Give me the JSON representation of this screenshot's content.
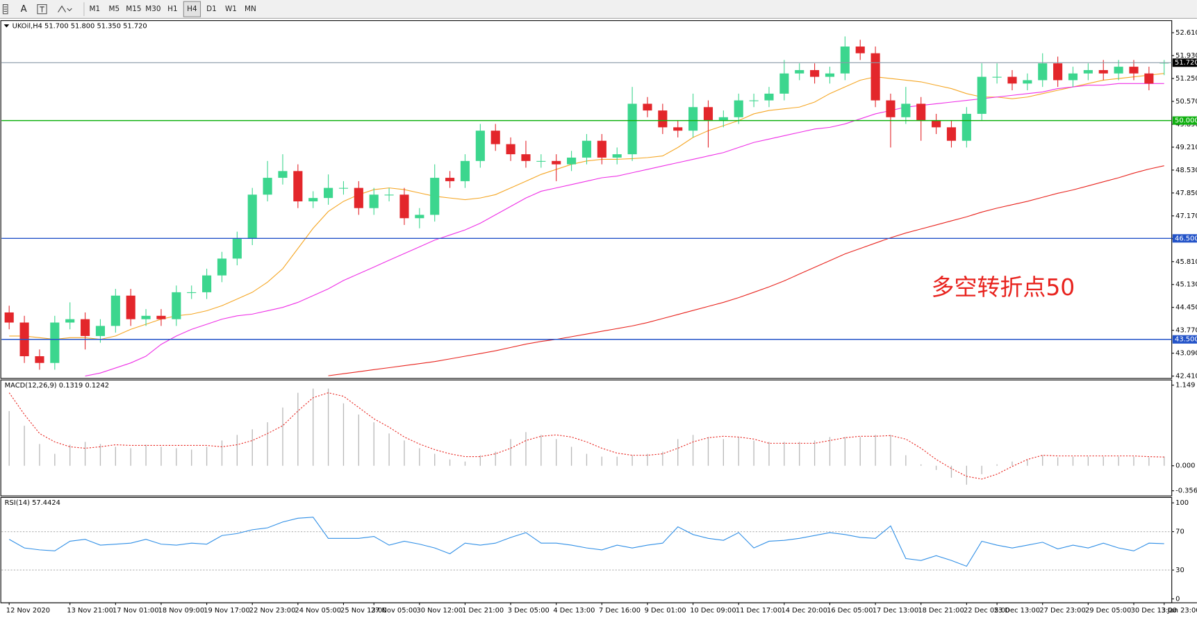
{
  "toolbar": {
    "text_tool": "A",
    "buttons": [
      "M1",
      "M5",
      "M15",
      "M30",
      "H1",
      "H4",
      "D1",
      "W1",
      "MN"
    ],
    "active": "H4"
  },
  "chart_data": [
    {
      "type": "candlestick",
      "title": "UKOil,H4  51.700 51.800 51.350 51.720",
      "categories": [
        "12 Nov 2020",
        null,
        null,
        null,
        "13 Nov 21:00",
        null,
        null,
        "17 Nov 01:00",
        null,
        null,
        "18 Nov 09:00",
        null,
        null,
        "19 Nov 17:00",
        null,
        null,
        "22 Nov 23:00",
        null,
        null,
        "24 Nov 05:00",
        null,
        null,
        "25 Nov 13:00",
        null,
        "27 Nov 05:00",
        null,
        null,
        "30 Nov 12:00",
        null,
        null,
        "1 Dec 21:00",
        null,
        null,
        "3 Dec 05:00",
        null,
        null,
        "4 Dec 13:00",
        null,
        null,
        "7 Dec 16:00",
        null,
        null,
        "9 Dec 01:00",
        null,
        null,
        "10 Dec 09:00",
        null,
        null,
        "11 Dec 17:00",
        null,
        null,
        "14 Dec 20:00",
        null,
        null,
        "16 Dec 05:00",
        null,
        null,
        "17 Dec 13:00",
        null,
        null,
        "18 Dec 21:00",
        null,
        null,
        "22 Dec 05:00",
        null,
        "23 Dec 13:00",
        null,
        null,
        "27 Dec 23:00",
        null,
        null,
        "29 Dec 05:00",
        null,
        null,
        "30 Dec 13:00",
        null,
        "3 Jan 23:00"
      ],
      "open": [
        44.3,
        44.0,
        43.0,
        42.8,
        44.0,
        44.1,
        43.6,
        43.9,
        44.8,
        44.1,
        44.2,
        44.1,
        44.9,
        44.9,
        45.4,
        45.9,
        46.5,
        47.8,
        48.3,
        48.5,
        47.6,
        47.7,
        48.0,
        48.0,
        47.4,
        47.8,
        47.8,
        47.1,
        47.2,
        48.3,
        48.2,
        48.8,
        49.7,
        49.3,
        49.0,
        48.8,
        48.8,
        48.7,
        48.9,
        49.4,
        48.9,
        49.0,
        50.5,
        50.3,
        49.8,
        49.7,
        50.4,
        50.0,
        50.1,
        50.6,
        50.6,
        50.8,
        51.4,
        51.5,
        51.3,
        51.4,
        52.2,
        52.0,
        50.6,
        50.1,
        50.5,
        50.0,
        49.8,
        49.4,
        50.2,
        51.3,
        51.3,
        51.1,
        51.2,
        51.7,
        51.2,
        51.4,
        51.5,
        51.4,
        51.6,
        51.4,
        51.7
      ],
      "high": [
        44.5,
        44.2,
        43.2,
        44.2,
        44.6,
        44.3,
        44.1,
        45.0,
        45.0,
        44.4,
        44.4,
        45.1,
        45.1,
        45.6,
        46.1,
        46.7,
        48.0,
        48.8,
        49.0,
        48.7,
        47.9,
        48.4,
        48.2,
        48.2,
        48.0,
        48.0,
        48.0,
        47.4,
        48.7,
        48.5,
        49.0,
        49.9,
        49.9,
        49.5,
        49.4,
        49.0,
        49.0,
        49.1,
        49.6,
        49.6,
        49.2,
        51.0,
        50.7,
        50.5,
        50.0,
        50.8,
        50.6,
        50.3,
        50.8,
        50.8,
        51.0,
        51.8,
        51.7,
        51.7,
        51.6,
        52.5,
        52.4,
        52.2,
        50.8,
        51.0,
        50.7,
        50.2,
        50.0,
        50.4,
        51.7,
        51.7,
        51.5,
        51.4,
        52.0,
        51.9,
        51.6,
        51.7,
        51.8,
        51.8,
        51.8,
        51.6,
        51.8
      ],
      "low": [
        43.8,
        42.8,
        42.6,
        42.6,
        43.8,
        43.2,
        43.4,
        43.7,
        43.9,
        43.9,
        43.9,
        43.9,
        44.7,
        44.7,
        45.2,
        45.7,
        46.3,
        47.6,
        48.1,
        47.4,
        47.4,
        47.5,
        47.8,
        47.2,
        47.2,
        47.6,
        46.9,
        46.8,
        47.0,
        48.0,
        48.0,
        48.6,
        49.1,
        48.8,
        48.6,
        48.6,
        48.2,
        48.5,
        48.7,
        48.7,
        48.7,
        48.8,
        50.1,
        49.6,
        49.5,
        49.5,
        49.2,
        49.8,
        49.9,
        50.4,
        50.4,
        50.6,
        51.2,
        51.1,
        51.1,
        51.2,
        51.8,
        50.4,
        49.2,
        49.9,
        49.4,
        49.6,
        49.2,
        49.2,
        50.0,
        51.1,
        50.9,
        50.9,
        51.0,
        51.0,
        51.0,
        51.2,
        51.2,
        51.2,
        51.2,
        50.9,
        51.35
      ],
      "close": [
        44.0,
        43.0,
        42.8,
        44.0,
        44.1,
        43.6,
        43.9,
        44.8,
        44.1,
        44.2,
        44.1,
        44.9,
        44.9,
        45.4,
        45.9,
        46.5,
        47.8,
        48.3,
        48.5,
        47.6,
        47.7,
        48.0,
        48.0,
        47.4,
        47.8,
        47.8,
        47.1,
        47.2,
        48.3,
        48.2,
        48.8,
        49.7,
        49.3,
        49.0,
        48.8,
        48.8,
        48.7,
        48.9,
        49.4,
        48.9,
        49.0,
        50.5,
        50.3,
        49.8,
        49.7,
        50.4,
        50.0,
        50.1,
        50.6,
        50.6,
        50.8,
        51.4,
        51.5,
        51.3,
        51.4,
        52.2,
        52.0,
        50.6,
        50.1,
        50.5,
        50.0,
        49.8,
        49.4,
        50.2,
        51.3,
        51.3,
        51.1,
        51.2,
        51.7,
        51.2,
        51.4,
        51.5,
        51.4,
        51.6,
        51.4,
        51.1,
        51.72
      ],
      "up_color": "#3cd68e",
      "down_color": "#e3262b",
      "series": [
        {
          "color": "#f5a623",
          "values": [
            43.6,
            43.6,
            43.55,
            43.5,
            43.55,
            43.55,
            43.5,
            43.6,
            43.8,
            43.95,
            44.1,
            44.2,
            44.25,
            44.35,
            44.5,
            44.7,
            44.9,
            45.2,
            45.6,
            46.2,
            46.8,
            47.3,
            47.6,
            47.8,
            47.95,
            48.0,
            47.95,
            47.85,
            47.75,
            47.7,
            47.65,
            47.7,
            47.8,
            48.0,
            48.2,
            48.4,
            48.55,
            48.7,
            48.8,
            48.85,
            48.85,
            48.87,
            48.9,
            48.95,
            49.2,
            49.5,
            49.7,
            49.85,
            50.0,
            50.2,
            50.3,
            50.35,
            50.4,
            50.55,
            50.8,
            51.0,
            51.2,
            51.3,
            51.25,
            51.2,
            51.15,
            51.05,
            50.95,
            50.8,
            50.7,
            50.7,
            50.65,
            50.7,
            50.8,
            50.9,
            51.0,
            51.1,
            51.2,
            51.25,
            51.3,
            51.35,
            51.4
          ]
        },
        {
          "color": "#ee2ee6",
          "values": [
            null,
            null,
            null,
            null,
            null,
            42.41,
            42.5,
            42.65,
            42.8,
            43.0,
            43.35,
            43.6,
            43.8,
            43.95,
            44.1,
            44.2,
            44.25,
            44.35,
            44.45,
            44.6,
            44.8,
            45.0,
            45.25,
            45.45,
            45.65,
            45.85,
            46.05,
            46.25,
            46.45,
            46.6,
            46.75,
            46.95,
            47.2,
            47.45,
            47.7,
            47.9,
            48.0,
            48.1,
            48.2,
            48.3,
            48.35,
            48.45,
            48.55,
            48.65,
            48.75,
            48.85,
            48.95,
            49.05,
            49.2,
            49.35,
            49.45,
            49.55,
            49.65,
            49.75,
            49.8,
            49.9,
            50.05,
            50.2,
            50.3,
            50.4,
            50.45,
            50.5,
            50.55,
            50.6,
            50.65,
            50.7,
            50.75,
            50.8,
            50.85,
            50.95,
            51.0,
            51.05,
            51.05,
            51.1,
            51.1,
            51.1,
            51.1
          ]
        },
        {
          "color": "#e8221c",
          "values": [
            null,
            null,
            null,
            null,
            null,
            null,
            null,
            null,
            null,
            null,
            null,
            null,
            null,
            null,
            null,
            null,
            null,
            null,
            null,
            null,
            null,
            42.42,
            42.48,
            42.54,
            42.6,
            42.66,
            42.72,
            42.78,
            42.84,
            42.92,
            43.0,
            43.08,
            43.16,
            43.26,
            43.36,
            43.44,
            43.5,
            43.58,
            43.66,
            43.74,
            43.82,
            43.9,
            44.0,
            44.12,
            44.24,
            44.36,
            44.48,
            44.6,
            44.74,
            44.9,
            45.06,
            45.24,
            45.44,
            45.64,
            45.84,
            46.04,
            46.2,
            46.36,
            46.52,
            46.66,
            46.78,
            46.9,
            47.02,
            47.14,
            47.28,
            47.4,
            47.5,
            47.6,
            47.72,
            47.84,
            47.94,
            48.06,
            48.18,
            48.3,
            48.44,
            48.56,
            48.66
          ]
        }
      ],
      "hlines": [
        {
          "value": 50,
          "label": "50.000",
          "color": "#10b010"
        },
        {
          "value": 46.5,
          "label": "46.500",
          "color": "#2353c8"
        },
        {
          "value": 43.5,
          "label": "43.500",
          "color": "#2353c8"
        }
      ],
      "current": {
        "value": 51.72,
        "label": "51.720",
        "color": "#8a99a8"
      },
      "annotation": "多空转折点50",
      "annotation_color": "#e8231e",
      "ylim": [
        42.34,
        52.97
      ],
      "yticks": [
        {
          "value": 52.61,
          "label": "52.610"
        },
        {
          "value": 51.93,
          "label": "51.930"
        },
        {
          "value": 51.25,
          "label": "51.250"
        },
        {
          "value": 50.57,
          "label": "50.570"
        },
        {
          "value": 49.89,
          "label": "49.890"
        },
        {
          "value": 49.21,
          "label": "49.210"
        },
        {
          "value": 48.53,
          "label": "48.530"
        },
        {
          "value": 47.85,
          "label": "47.850"
        },
        {
          "value": 47.17,
          "label": "47.170"
        },
        {
          "value": 46.49,
          "label": "46.490"
        },
        {
          "value": 45.81,
          "label": "45.810"
        },
        {
          "value": 45.13,
          "label": "45.130"
        },
        {
          "value": 44.45,
          "label": "44.450"
        },
        {
          "value": 43.77,
          "label": "43.770"
        },
        {
          "value": 43.09,
          "label": "43.090"
        },
        {
          "value": 42.41,
          "label": "42.410"
        }
      ]
    },
    {
      "type": "macd",
      "title": "MACD(12,26,9) 0.1319 0.1242",
      "histogram": [
        0.78,
        0.57,
        0.31,
        0.17,
        0.3,
        0.34,
        0.31,
        0.27,
        0.25,
        0.3,
        0.27,
        0.25,
        0.23,
        0.27,
        0.36,
        0.44,
        0.52,
        0.62,
        0.83,
        1.04,
        1.1,
        1.1,
        0.89,
        0.73,
        0.62,
        0.46,
        0.36,
        0.25,
        0.17,
        0.09,
        0.06,
        0.15,
        0.2,
        0.38,
        0.48,
        0.44,
        0.38,
        0.27,
        0.17,
        0.13,
        0.13,
        0.15,
        0.17,
        0.2,
        0.38,
        0.44,
        0.41,
        0.38,
        0.41,
        0.36,
        0.34,
        0.34,
        0.34,
        0.36,
        0.41,
        0.41,
        0.41,
        0.44,
        0.44,
        0.15,
        0.02,
        -0.06,
        -0.17,
        -0.27,
        -0.12,
        0.02,
        0.06,
        0.09,
        0.15,
        0.12,
        0.13,
        0.13,
        0.13,
        0.13,
        0.13,
        0.12,
        0.1319
      ],
      "signal": [
        1.04,
        0.73,
        0.46,
        0.34,
        0.27,
        0.25,
        0.27,
        0.3,
        0.29,
        0.29,
        0.29,
        0.29,
        0.29,
        0.29,
        0.27,
        0.3,
        0.36,
        0.46,
        0.57,
        0.78,
        0.97,
        1.04,
        0.99,
        0.83,
        0.67,
        0.55,
        0.41,
        0.31,
        0.23,
        0.17,
        0.13,
        0.13,
        0.17,
        0.25,
        0.36,
        0.42,
        0.44,
        0.41,
        0.34,
        0.25,
        0.18,
        0.15,
        0.15,
        0.17,
        0.25,
        0.34,
        0.4,
        0.42,
        0.41,
        0.38,
        0.32,
        0.32,
        0.32,
        0.32,
        0.36,
        0.4,
        0.42,
        0.42,
        0.43,
        0.38,
        0.25,
        0.09,
        -0.04,
        -0.15,
        -0.19,
        -0.12,
        -0.01,
        0.09,
        0.15,
        0.14,
        0.14,
        0.14,
        0.14,
        0.14,
        0.14,
        0.13,
        0.1242
      ],
      "histogram_color": "#b8b8b8",
      "signal_color": "#e8221c",
      "ylim": [
        -0.43,
        1.223
      ],
      "yticks": [
        1.149,
        {
          "value": 0,
          "label": "0.000"
        },
        -0.3563
      ]
    },
    {
      "type": "line",
      "title": "RSI(14) 57.4424",
      "values": [
        62,
        53,
        51,
        50,
        60,
        62,
        56,
        57,
        58,
        62,
        57,
        56,
        58,
        57,
        66,
        68,
        72,
        74,
        80,
        84,
        85,
        63,
        63,
        63,
        65,
        56,
        60,
        57,
        53,
        47,
        58,
        56,
        58,
        64,
        69,
        58,
        58,
        56,
        53,
        51,
        56,
        53,
        56,
        58,
        75,
        67,
        63,
        61,
        69,
        53,
        60,
        61,
        63,
        66,
        69,
        67,
        64,
        63,
        76,
        42,
        40,
        45,
        40,
        34,
        60,
        56,
        53,
        56,
        59,
        52,
        56,
        53,
        58,
        53,
        50,
        58,
        57.4424
      ],
      "color": "#2e8ee6",
      "levels": [
        70,
        30
      ],
      "level_color": "#b0b0b0",
      "ylim": [
        -4,
        105.6
      ],
      "yticks": [
        100,
        70,
        30,
        0
      ]
    }
  ]
}
